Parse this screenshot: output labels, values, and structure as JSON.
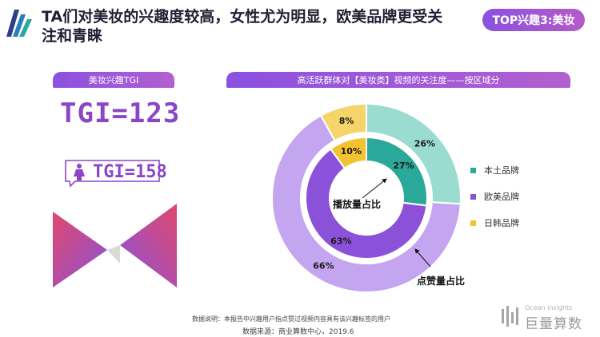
{
  "title": "TA们对美妆的兴趣度较高，女性尤为明显，欧美品牌更受关注和青睐",
  "badge": "TOP兴趣3:美妆",
  "left_panel": {
    "header": "美妆兴趣TGI",
    "tgi_main": "TGI=123",
    "tgi_female": "TGI=158"
  },
  "right_panel": {
    "header": "高活跃群体对【美妆类】视频的关注度——按区域分"
  },
  "chart_data": {
    "type": "donut",
    "categories": [
      "本土品牌",
      "欧美品牌",
      "日韩品牌"
    ],
    "series": [
      {
        "name": "播放量占比",
        "values": [
          27,
          63,
          10
        ]
      },
      {
        "name": "点赞量占比",
        "values": [
          26,
          66,
          8
        ]
      }
    ],
    "value_labels": {
      "inner": [
        "27%",
        "63%",
        "10%"
      ],
      "outer": [
        "26%",
        "66%",
        "8%"
      ]
    },
    "colors": [
      "#2aa99a",
      "#8b52d9",
      "#f1c232"
    ],
    "outer_colors": [
      "#9adcd0",
      "#c4a5ef",
      "#f5d56a"
    ],
    "legend": {
      "position": "right",
      "labels": [
        "本土品牌",
        "欧美品牌",
        "日韩品牌"
      ]
    }
  },
  "footer": {
    "note": "数据说明：本报告中兴趣用户指点赞过视频内容具有该兴趣标签的用户",
    "source": "数据来源：商业算数中心，2019.6",
    "brand_small": "Ocean insights",
    "brand_big": "巨量算数"
  }
}
